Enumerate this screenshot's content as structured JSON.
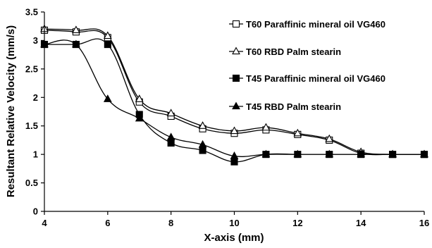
{
  "chart_data": {
    "type": "line",
    "title": "",
    "xlabel": "X-axis (mm)",
    "ylabel": "Resultant Relative Velocity (mm/s)",
    "xlim": [
      4,
      16
    ],
    "ylim": [
      0,
      3.5
    ],
    "xticks": [
      4,
      6,
      8,
      10,
      12,
      14,
      16
    ],
    "yticks": [
      0,
      0.5,
      1,
      1.5,
      2,
      2.5,
      3,
      3.5
    ],
    "xtick_labels": [
      "4",
      "6",
      "8",
      "10",
      "12",
      "14",
      "16"
    ],
    "ytick_labels": [
      "0",
      "0.5",
      "1",
      "1.5",
      "2",
      "2.5",
      "3",
      "3.5"
    ],
    "grid": false,
    "legend_position": "top-right",
    "series": [
      {
        "name": "T60 Paraffinic mineral oil VG460",
        "marker": "square-open",
        "color": "#000000",
        "x": [
          4,
          5,
          6,
          7,
          8,
          9,
          10,
          11,
          12,
          13,
          14,
          15,
          16
        ],
        "y": [
          3.18,
          3.15,
          3.05,
          1.92,
          1.67,
          1.45,
          1.37,
          1.43,
          1.35,
          1.25,
          1.02,
          1.0,
          1.0
        ]
      },
      {
        "name": "T60 RBD Palm stearin",
        "marker": "triangle-open",
        "color": "#000000",
        "x": [
          4,
          5,
          6,
          7,
          8,
          9,
          10,
          11,
          12,
          13,
          14,
          15,
          16
        ],
        "y": [
          3.2,
          3.18,
          3.08,
          1.97,
          1.72,
          1.5,
          1.41,
          1.47,
          1.37,
          1.27,
          1.04,
          1.0,
          1.0
        ]
      },
      {
        "name": "T45 Paraffinic mineral oil VG460",
        "marker": "square-filled",
        "color": "#000000",
        "x": [
          4,
          5,
          6,
          7,
          8,
          9,
          10,
          11,
          12,
          13,
          14,
          15,
          16
        ],
        "y": [
          2.93,
          2.93,
          2.93,
          1.7,
          1.2,
          1.07,
          0.87,
          1.0,
          1.0,
          1.0,
          1.0,
          1.0,
          1.0
        ]
      },
      {
        "name": "T45 RBD Palm stearin",
        "marker": "triangle-filled",
        "color": "#000000",
        "x": [
          4,
          5,
          6,
          7,
          8,
          9,
          10,
          11,
          12,
          13,
          14,
          15,
          16
        ],
        "y": [
          2.93,
          2.93,
          1.97,
          1.63,
          1.3,
          1.17,
          0.97,
          1.0,
          1.0,
          1.0,
          1.0,
          1.0,
          1.0
        ]
      }
    ]
  }
}
